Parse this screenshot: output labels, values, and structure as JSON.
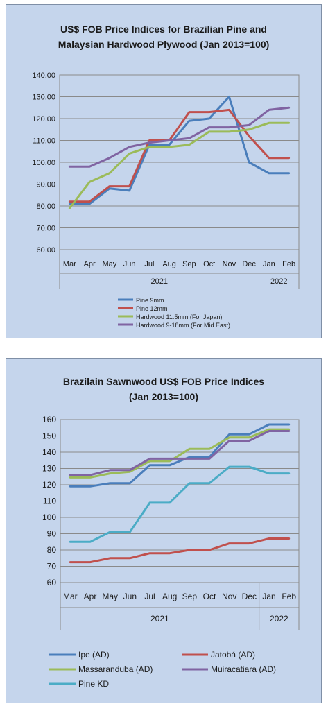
{
  "chart_data": [
    {
      "type": "line",
      "title": "US$ FOB Price Indices for Brazilian Pine and",
      "subtitle": "Malaysian Hardwood Plywood (Jan 2013=100)",
      "categories": [
        "Mar",
        "Apr",
        "May",
        "Jun",
        "Jul",
        "Aug",
        "Sep",
        "Oct",
        "Nov",
        "Dec",
        "Jan",
        "Feb"
      ],
      "year_groups": [
        {
          "label": "2021",
          "from": 0,
          "to": 9
        },
        {
          "label": "2022",
          "from": 10,
          "to": 11
        }
      ],
      "ylim": [
        60,
        140
      ],
      "yticks": [
        "60.00",
        "70.00",
        "80.00",
        "90.00",
        "100.00",
        "110.00",
        "120.00",
        "130.00",
        "140.00"
      ],
      "ytick_values": [
        60,
        70,
        80,
        90,
        100,
        110,
        120,
        130,
        140
      ],
      "grid": true,
      "legend_position": "bottom",
      "series": [
        {
          "name": "Pine 9mm",
          "color": "#4a7ebb",
          "values": [
            81,
            81,
            88,
            87,
            108,
            108,
            119,
            120,
            130,
            100,
            95,
            95
          ]
        },
        {
          "name": "Pine 12mm",
          "color": "#c0504d",
          "values": [
            82,
            82,
            89,
            89,
            110,
            110,
            123,
            123,
            124,
            112,
            102,
            102
          ]
        },
        {
          "name": "Hardwood 11.5mm (For Japan)",
          "color": "#9bbb59",
          "values": [
            79,
            91,
            95,
            104,
            107,
            107,
            108,
            114,
            114,
            115,
            118,
            118
          ]
        },
        {
          "name": "Hardwood 9-18mm (For Mid East)",
          "color": "#8064a2",
          "values": [
            98,
            98,
            102,
            107,
            109,
            110,
            111,
            116,
            116,
            117,
            124,
            125
          ]
        }
      ]
    },
    {
      "type": "line",
      "title": "Brazilain Sawnwood US$ FOB Price Indices",
      "subtitle": "(Jan 2013=100)",
      "categories": [
        "Mar",
        "Apr",
        "May",
        "Jun",
        "Jul",
        "Aug",
        "Sep",
        "Oct",
        "Nov",
        "Dec",
        "Jan",
        "Feb"
      ],
      "year_groups": [
        {
          "label": "2021",
          "from": 0,
          "to": 9
        },
        {
          "label": "2022",
          "from": 10,
          "to": 11
        }
      ],
      "ylim": [
        60,
        160
      ],
      "yticks": [
        "60",
        "70",
        "80",
        "90",
        "100",
        "110",
        "120",
        "130",
        "140",
        "150",
        "160"
      ],
      "ytick_values": [
        60,
        70,
        80,
        90,
        100,
        110,
        120,
        130,
        140,
        150,
        160
      ],
      "grid": true,
      "legend_position": "bottom",
      "series": [
        {
          "name": "Ipe (AD)",
          "color": "#4a7ebb",
          "values": [
            119,
            119,
            121,
            121,
            132,
            132,
            137,
            137,
            151,
            151,
            157,
            157
          ]
        },
        {
          "name": "Jatobá (AD)",
          "color": "#c0504d",
          "values": [
            72.5,
            72.5,
            75,
            75,
            78,
            78,
            80,
            80,
            84,
            84,
            87,
            87
          ]
        },
        {
          "name": "Massaranduba (AD)",
          "color": "#9bbb59",
          "values": [
            124.5,
            124.5,
            127,
            128,
            134.5,
            134.5,
            142,
            142,
            149,
            149,
            154,
            154
          ]
        },
        {
          "name": "Muiracatiara (AD)",
          "color": "#8064a2",
          "values": [
            126,
            126,
            129,
            129,
            136,
            136,
            136,
            136,
            147,
            147,
            153,
            153
          ]
        },
        {
          "name": "Pine KD",
          "color": "#4bacc6",
          "values": [
            85,
            85,
            91,
            91,
            109,
            109,
            121,
            121,
            131,
            131,
            127,
            127
          ]
        }
      ]
    }
  ]
}
